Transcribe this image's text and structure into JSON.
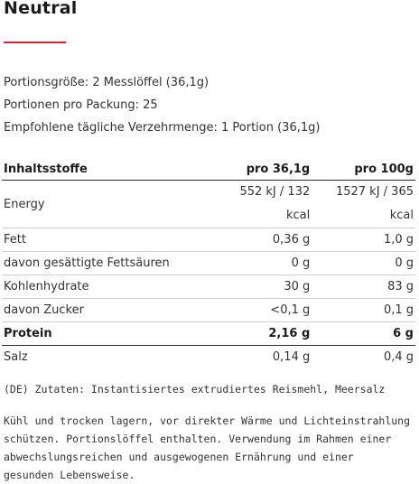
{
  "title": "Neutral",
  "accent_color": "#d9232e",
  "meta": {
    "serving_size": "Portionsgröße: 2 Messlöffel (36,1g)",
    "servings_per_pack": "Portionen pro Packung: 25",
    "recommended_intake": "Empfohlene tägliche Verzehrmenge: 1 Portion (36,1g)"
  },
  "table": {
    "headers": [
      "Inhaltsstoffe",
      "pro 36,1g",
      "pro 100g"
    ],
    "energy": {
      "label": "Energy",
      "per_serving_line1": "552 kJ / 132",
      "per_serving_line2": "kcal",
      "per_100g_line1": "1527 kJ / 365",
      "per_100g_line2": "kcal"
    },
    "rows": [
      {
        "label": "Fett",
        "per_serving": "0,36 g",
        "per_100g": "1,0 g"
      },
      {
        "label": "davon gesättigte Fettsäuren",
        "per_serving": "0 g",
        "per_100g": "0 g"
      },
      {
        "label": "Kohlenhydrate",
        "per_serving": "30 g",
        "per_100g": "83 g"
      },
      {
        "label": "davon Zucker",
        "per_serving": "<0,1 g",
        "per_100g": "0,1 g"
      },
      {
        "label": "Protein",
        "per_serving": "2,16 g",
        "per_100g": "6 g"
      },
      {
        "label": "Salz",
        "per_serving": "0,14 g",
        "per_100g": "0,4 g"
      }
    ]
  },
  "ingredients": "(DE) Zutaten: Instantisiertes extrudiertes Reismehl, Meersalz",
  "storage": [
    "Kühl und trocken lagern, vor direkter Wärme und Lichteinstrahlung",
    "schützen. Portionslöffel enthalten. Verwendung im Rahmen einer",
    "abwechslungsreichen und ausgewogenen Ernährung und einer",
    "gesunden Lebensweise."
  ]
}
